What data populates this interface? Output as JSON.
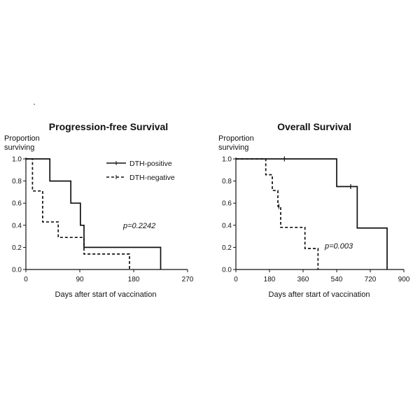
{
  "chart_data": [
    {
      "type": "line",
      "title": "Progression-free Survival",
      "ylabel_line1": "Proportion",
      "ylabel_line2": "surviving",
      "xlabel": "Days after start of vaccination",
      "xlim": [
        0,
        270
      ],
      "ylim": [
        0,
        1.0
      ],
      "xticks": [
        0,
        90,
        180,
        270
      ],
      "xtick_labels": [
        "0",
        "90",
        "180",
        "270"
      ],
      "yticks": [
        0.0,
        0.2,
        0.4,
        0.6,
        0.8,
        1.0
      ],
      "ytick_labels": [
        "0.0",
        "0.2",
        "0.4",
        "0.6",
        "0.8",
        "1.0"
      ],
      "annotation": "p=0.2242",
      "legend": {
        "position": "top-right",
        "entries": [
          "DTH-positive",
          "DTH-negative"
        ]
      },
      "series": [
        {
          "name": "DTH-positive",
          "style": "solid",
          "steps": [
            [
              0,
              1.0
            ],
            [
              40,
              0.8
            ],
            [
              75,
              0.6
            ],
            [
              91,
              0.4
            ],
            [
              97,
              0.2
            ],
            [
              225,
              0.0
            ]
          ],
          "censor": []
        },
        {
          "name": "DTH-negative",
          "style": "dashed",
          "steps": [
            [
              0,
              1.0
            ],
            [
              11,
              0.71
            ],
            [
              28,
              0.43
            ],
            [
              54,
              0.29
            ],
            [
              97,
              0.14
            ],
            [
              173,
              0.0
            ]
          ],
          "censor": []
        }
      ]
    },
    {
      "type": "line",
      "title": "Overall Survival",
      "ylabel_line1": "Proportion",
      "ylabel_line2": "surviving",
      "xlabel": "Days after start of vaccination",
      "xlim": [
        0,
        900
      ],
      "ylim": [
        0,
        1.0
      ],
      "xticks": [
        0,
        180,
        360,
        540,
        720,
        900
      ],
      "xtick_labels": [
        "0",
        "180",
        "360",
        "540",
        "720",
        "900"
      ],
      "yticks": [
        0.0,
        0.2,
        0.4,
        0.6,
        0.8,
        1.0
      ],
      "ytick_labels": [
        "0.0",
        "0.2",
        "0.4",
        "0.6",
        "0.8",
        "1.0"
      ],
      "annotation": "p=0.003",
      "series": [
        {
          "name": "DTH-positive",
          "style": "solid",
          "steps": [
            [
              0,
              1.0
            ],
            [
              540,
              0.75
            ],
            [
              650,
              0.375
            ],
            [
              810,
              0.0
            ]
          ],
          "censor": [
            [
              260,
              1.0
            ],
            [
              615,
              0.75
            ]
          ]
        },
        {
          "name": "DTH-negative",
          "style": "dashed",
          "steps": [
            [
              0,
              1.0
            ],
            [
              160,
              0.857
            ],
            [
              195,
              0.714
            ],
            [
              225,
              0.571
            ],
            [
              240,
              0.381
            ],
            [
              370,
              0.19
            ],
            [
              440,
              0.0
            ]
          ],
          "censor": [
            [
              230,
              0.571
            ]
          ]
        }
      ]
    }
  ]
}
